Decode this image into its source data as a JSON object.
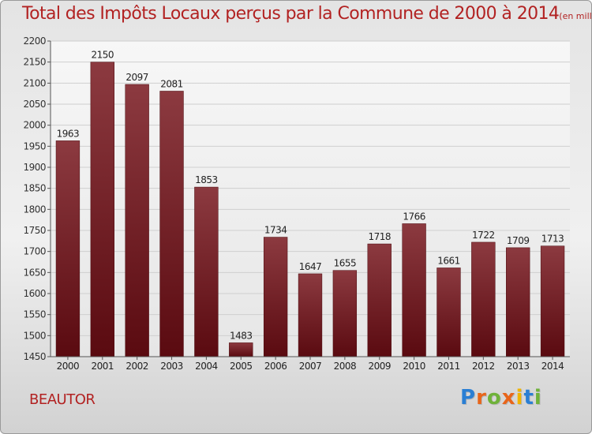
{
  "title": {
    "main": "Total des Impôts Locaux perçus par la Commune de 2000 à 2014",
    "unit": "(en milliers d'€)"
  },
  "commune_name": "BEAUTOR",
  "logo": {
    "text": "Proxiti",
    "letters": [
      {
        "ch": "P",
        "color": "#2a7fd4"
      },
      {
        "ch": "r",
        "color": "#e8651a"
      },
      {
        "ch": "o",
        "color": "#6fb23a"
      },
      {
        "ch": "x",
        "color": "#e8651a"
      },
      {
        "ch": "i",
        "color": "#f0b400"
      },
      {
        "ch": "t",
        "color": "#2a7fd4"
      },
      {
        "ch": "i",
        "color": "#6fb23a"
      }
    ]
  },
  "colors": {
    "title": "#b22222",
    "bar_top": "#8c3a40",
    "bar_bottom": "#5a0a10",
    "grid": "#cfcfcf",
    "axis": "#555555"
  },
  "chart_data": {
    "type": "bar",
    "categories": [
      "2000",
      "2001",
      "2002",
      "2003",
      "2004",
      "2005",
      "2006",
      "2007",
      "2008",
      "2009",
      "2010",
      "2011",
      "2012",
      "2013",
      "2014"
    ],
    "values": [
      1963,
      2150,
      2097,
      2081,
      1853,
      1483,
      1734,
      1647,
      1655,
      1718,
      1766,
      1661,
      1722,
      1709,
      1713
    ],
    "ylim": [
      1450,
      2200
    ],
    "yticks": [
      1450,
      1500,
      1550,
      1600,
      1650,
      1700,
      1750,
      1800,
      1850,
      1900,
      1950,
      2000,
      2050,
      2100,
      2150,
      2200
    ],
    "grid": true,
    "data_labels": true,
    "title": "Total des Impôts Locaux perçus par la Commune de 2000 à 2014"
  }
}
